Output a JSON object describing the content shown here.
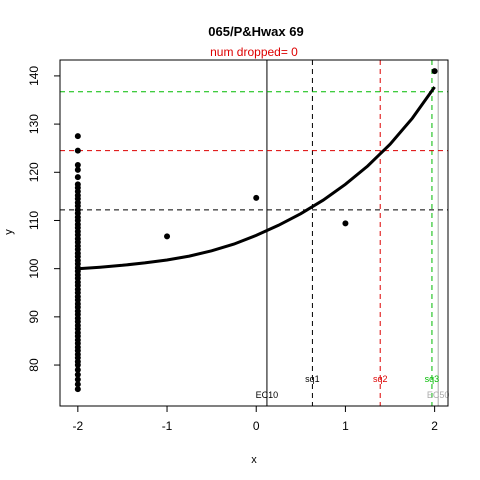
{
  "chart_data": {
    "type": "scatter",
    "title": "065/P&Hwax 69",
    "subtitle": "num dropped= 0",
    "xlabel": "x",
    "ylabel": "y",
    "xlim": [
      -2.2,
      2.15
    ],
    "ylim": [
      71.5,
      143.3
    ],
    "x_ticks": [
      -2,
      -1,
      0,
      1,
      2
    ],
    "y_ticks": [
      80,
      90,
      100,
      110,
      120,
      130,
      140
    ],
    "grid": false,
    "points": [
      {
        "x": -2,
        "y": 127.5
      },
      {
        "x": -2,
        "y": 124.5
      },
      {
        "x": -2,
        "y": 121.5
      },
      {
        "x": -2,
        "y": 120.5
      },
      {
        "x": -2,
        "y": 119.0
      },
      {
        "x": -2,
        "y": 117.5
      },
      {
        "x": -2,
        "y": 116.8
      },
      {
        "x": -2,
        "y": 116.0
      },
      {
        "x": -2,
        "y": 115.2
      },
      {
        "x": -2,
        "y": 114.5
      },
      {
        "x": -2,
        "y": 113.7
      },
      {
        "x": -2,
        "y": 113.0
      },
      {
        "x": -2,
        "y": 112.2
      },
      {
        "x": -2,
        "y": 111.5
      },
      {
        "x": -2,
        "y": 110.7
      },
      {
        "x": -2,
        "y": 110.0
      },
      {
        "x": -2,
        "y": 109.2
      },
      {
        "x": -2,
        "y": 108.5
      },
      {
        "x": -2,
        "y": 107.7
      },
      {
        "x": -2,
        "y": 107.0
      },
      {
        "x": -2,
        "y": 106.2
      },
      {
        "x": -2,
        "y": 105.5
      },
      {
        "x": -2,
        "y": 104.7
      },
      {
        "x": -2,
        "y": 104.0
      },
      {
        "x": -2,
        "y": 103.2
      },
      {
        "x": -2,
        "y": 102.5
      },
      {
        "x": -2,
        "y": 101.7
      },
      {
        "x": -2,
        "y": 101.0
      },
      {
        "x": -2,
        "y": 100.2
      },
      {
        "x": -2,
        "y": 99.5
      },
      {
        "x": -2,
        "y": 98.7
      },
      {
        "x": -2,
        "y": 98.0
      },
      {
        "x": -2,
        "y": 97.2
      },
      {
        "x": -2,
        "y": 96.5
      },
      {
        "x": -2,
        "y": 95.7
      },
      {
        "x": -2,
        "y": 95.0
      },
      {
        "x": -2,
        "y": 94.2
      },
      {
        "x": -2,
        "y": 93.5
      },
      {
        "x": -2,
        "y": 92.7
      },
      {
        "x": -2,
        "y": 92.0
      },
      {
        "x": -2,
        "y": 91.2
      },
      {
        "x": -2,
        "y": 90.5
      },
      {
        "x": -2,
        "y": 89.7
      },
      {
        "x": -2,
        "y": 89.0
      },
      {
        "x": -2,
        "y": 88.2
      },
      {
        "x": -2,
        "y": 87.5
      },
      {
        "x": -2,
        "y": 86.7
      },
      {
        "x": -2,
        "y": 86.0
      },
      {
        "x": -2,
        "y": 85.2
      },
      {
        "x": -2,
        "y": 84.5
      },
      {
        "x": -2,
        "y": 83.7
      },
      {
        "x": -2,
        "y": 83.0
      },
      {
        "x": -2,
        "y": 82.2
      },
      {
        "x": -2,
        "y": 81.5
      },
      {
        "x": -2,
        "y": 80.7
      },
      {
        "x": -2,
        "y": 80.0
      },
      {
        "x": -2,
        "y": 79.0
      },
      {
        "x": -2,
        "y": 78.0
      },
      {
        "x": -2,
        "y": 77.0
      },
      {
        "x": -2,
        "y": 76.0
      },
      {
        "x": -2,
        "y": 75.0
      },
      {
        "x": -1,
        "y": 106.7
      },
      {
        "x": 0,
        "y": 114.7
      },
      {
        "x": 1,
        "y": 109.4
      },
      {
        "x": 2,
        "y": 141.0
      }
    ],
    "fit_curve": {
      "color": "#000000",
      "x": [
        -2.0,
        -1.75,
        -1.5,
        -1.25,
        -1.0,
        -0.75,
        -0.5,
        -0.25,
        0.0,
        0.25,
        0.5,
        0.75,
        1.0,
        1.25,
        1.5,
        1.75,
        2.0
      ],
      "y": [
        100.0,
        100.3,
        100.7,
        101.2,
        101.8,
        102.6,
        103.7,
        105.1,
        106.9,
        109.0,
        111.4,
        114.2,
        117.5,
        121.3,
        125.8,
        131.2,
        137.7
      ]
    },
    "hlines": [
      {
        "y": 112.2,
        "color": "#000000",
        "dashed": true
      },
      {
        "y": 124.5,
        "color": "#dd0000",
        "dashed": true
      },
      {
        "y": 136.7,
        "color": "#00bb00",
        "dashed": true
      }
    ],
    "vlines": [
      {
        "x": 0.12,
        "color": "#000000",
        "dashed": false,
        "label": "EC10"
      },
      {
        "x": 0.63,
        "color": "#000000",
        "dashed": true,
        "label": "sq1"
      },
      {
        "x": 1.39,
        "color": "#dd0000",
        "dashed": true,
        "label": "sq2"
      },
      {
        "x": 1.97,
        "color": "#00bb00",
        "dashed": true,
        "label": "sq3"
      },
      {
        "x": 2.04,
        "color": "#aaaaaa",
        "dashed": false,
        "label": "EC50"
      }
    ]
  }
}
